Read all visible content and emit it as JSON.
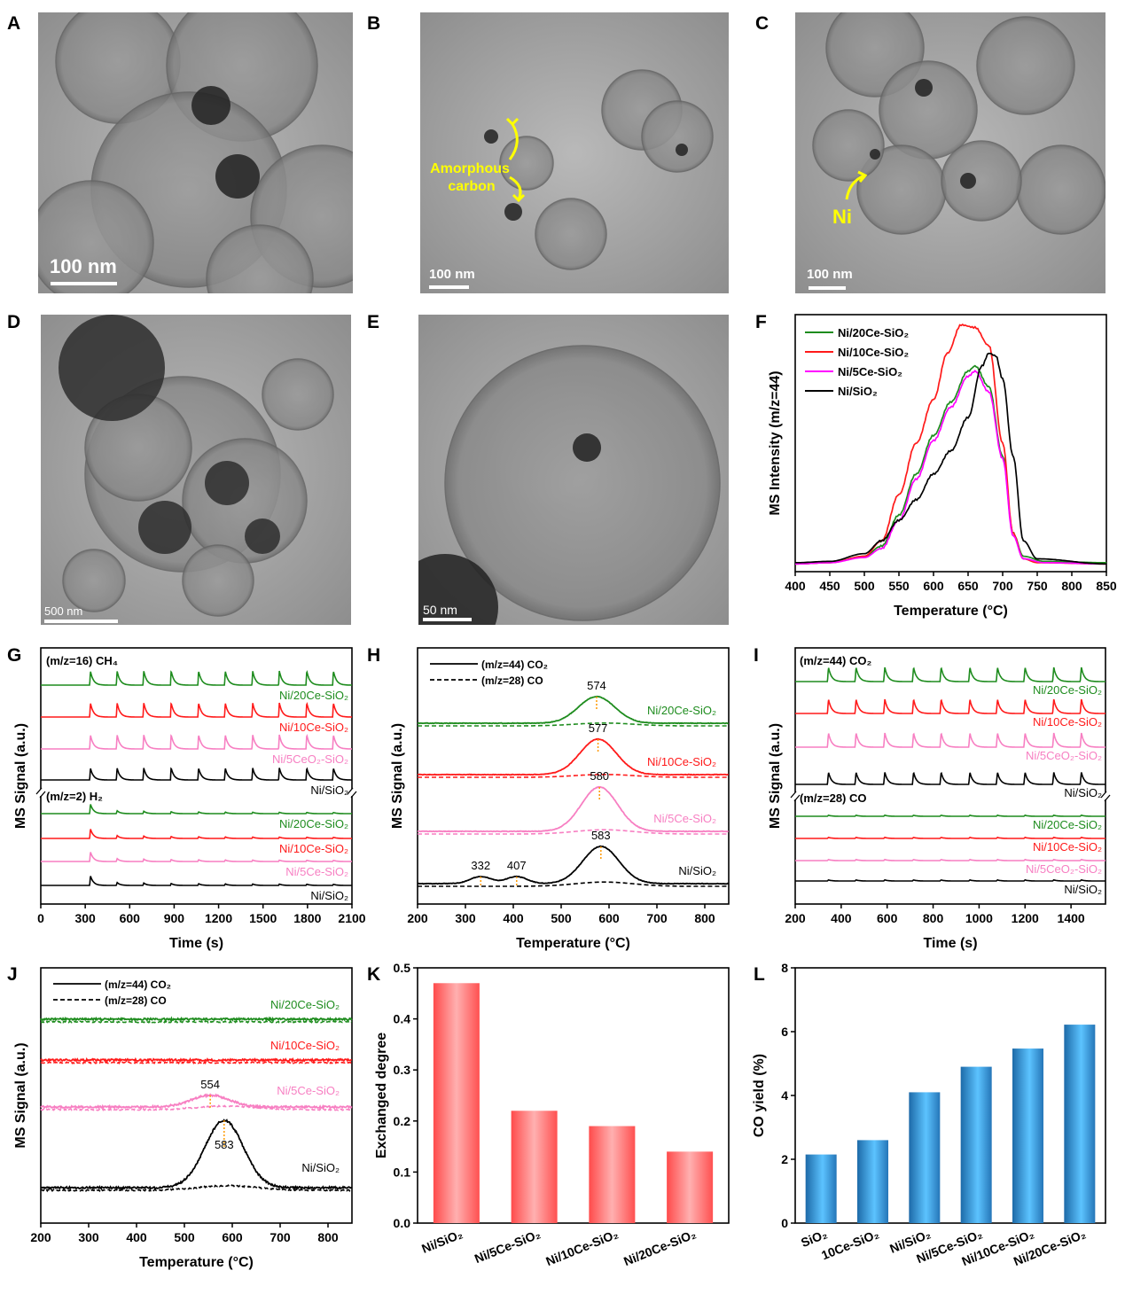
{
  "panel_labels": [
    "A",
    "B",
    "C",
    "D",
    "E",
    "F",
    "G",
    "H",
    "I",
    "J",
    "K",
    "L"
  ],
  "images": {
    "A": {
      "scale_bar": "100 nm"
    },
    "B": {
      "scale_bar": "100 nm",
      "annotation": [
        "Amorphous",
        "carbon"
      ],
      "annotation_color": "#ffff00"
    },
    "C": {
      "scale_bar": "100 nm",
      "annotation": [
        "Ni"
      ],
      "annotation_color": "#ffff00"
    },
    "D": {
      "scale_bar": "500 nm"
    },
    "E": {
      "scale_bar": "50 nm"
    }
  },
  "chart_data": [
    {
      "panel": "F",
      "type": "line",
      "xlabel": "Temperature (°C)",
      "ylabel": "MS Intensity (m/z=44)",
      "xlim": [
        400,
        850
      ],
      "xticks": [
        400,
        450,
        500,
        550,
        600,
        650,
        700,
        750,
        800,
        850
      ],
      "legend_position": "top-left",
      "grid": false,
      "series": [
        {
          "name": "Ni/20Ce-SiO₂",
          "color": "#1e8c1e",
          "points": [
            [
              400,
              0.03
            ],
            [
              450,
              0.035
            ],
            [
              500,
              0.06
            ],
            [
              525,
              0.1
            ],
            [
              550,
              0.22
            ],
            [
              575,
              0.38
            ],
            [
              600,
              0.53
            ],
            [
              625,
              0.66
            ],
            [
              650,
              0.78
            ],
            [
              660,
              0.8
            ],
            [
              680,
              0.72
            ],
            [
              700,
              0.45
            ],
            [
              715,
              0.15
            ],
            [
              730,
              0.06
            ],
            [
              760,
              0.04
            ],
            [
              850,
              0.035
            ]
          ]
        },
        {
          "name": "Ni/10Ce-SiO₂",
          "color": "#ff1a1a",
          "points": [
            [
              400,
              0.03
            ],
            [
              450,
              0.035
            ],
            [
              500,
              0.06
            ],
            [
              525,
              0.12
            ],
            [
              550,
              0.3
            ],
            [
              575,
              0.5
            ],
            [
              600,
              0.67
            ],
            [
              620,
              0.85
            ],
            [
              640,
              0.96
            ],
            [
              660,
              0.95
            ],
            [
              680,
              0.88
            ],
            [
              700,
              0.5
            ],
            [
              715,
              0.15
            ],
            [
              730,
              0.05
            ],
            [
              750,
              0.035
            ],
            [
              850,
              0.03
            ]
          ]
        },
        {
          "name": "Ni/5Ce-SiO₂",
          "color": "#ff00ff",
          "points": [
            [
              400,
              0.03
            ],
            [
              450,
              0.035
            ],
            [
              500,
              0.055
            ],
            [
              525,
              0.09
            ],
            [
              550,
              0.2
            ],
            [
              575,
              0.36
            ],
            [
              600,
              0.51
            ],
            [
              625,
              0.64
            ],
            [
              650,
              0.76
            ],
            [
              660,
              0.78
            ],
            [
              680,
              0.7
            ],
            [
              700,
              0.44
            ],
            [
              715,
              0.14
            ],
            [
              730,
              0.05
            ],
            [
              760,
              0.035
            ],
            [
              850,
              0.03
            ]
          ]
        },
        {
          "name": "Ni/SiO₂",
          "color": "#000000",
          "points": [
            [
              400,
              0.035
            ],
            [
              450,
              0.04
            ],
            [
              500,
              0.07
            ],
            [
              525,
              0.12
            ],
            [
              550,
              0.2
            ],
            [
              575,
              0.28
            ],
            [
              600,
              0.38
            ],
            [
              625,
              0.47
            ],
            [
              650,
              0.6
            ],
            [
              670,
              0.8
            ],
            [
              680,
              0.85
            ],
            [
              690,
              0.84
            ],
            [
              700,
              0.75
            ],
            [
              715,
              0.45
            ],
            [
              730,
              0.12
            ],
            [
              750,
              0.05
            ],
            [
              850,
              0.03
            ]
          ]
        }
      ]
    },
    {
      "panel": "G",
      "type": "line",
      "xlabel": "Time (s)",
      "ylabel": "MS Signal (a.u.)",
      "xlim": [
        0,
        2100
      ],
      "xticks": [
        0,
        300,
        600,
        900,
        1200,
        1500,
        1800,
        2100
      ],
      "pulse_times": [
        330,
        510,
        690,
        875,
        1060,
        1240,
        1425,
        1605,
        1790,
        1970
      ],
      "groups": [
        {
          "label": "(m/z=16) CH₄",
          "relative_peak_heights": [
            1,
            1,
            1,
            1,
            1,
            1,
            1,
            1,
            1,
            1
          ],
          "series": [
            {
              "name": "Ni/20Ce-SiO₂",
              "color": "#1e8c1e"
            },
            {
              "name": "Ni/10Ce-SiO₂",
              "color": "#ff1a1a"
            },
            {
              "name": "Ni/5CeO₂-SiO₂",
              "color": "#f77fc2"
            },
            {
              "name": "Ni/SiO₂",
              "color": "#000000"
            }
          ]
        },
        {
          "label": "(m/z=2) H₂",
          "relative_peak_heights": [
            1,
            0.3,
            0.25,
            0.2,
            0.18,
            0.16,
            0.15,
            0.14,
            0.13,
            0.12
          ],
          "series": [
            {
              "name": "Ni/20Ce-SiO₂",
              "color": "#1e8c1e"
            },
            {
              "name": "Ni/10Ce-SiO₂",
              "color": "#ff1a1a"
            },
            {
              "name": "Ni/5Ce-SiO₂",
              "color": "#f77fc2"
            },
            {
              "name": "Ni/SiO₂",
              "color": "#000000"
            }
          ]
        }
      ]
    },
    {
      "panel": "H",
      "type": "line",
      "xlabel": "Temperature (°C)",
      "ylabel": "MS Signal (a.u.)",
      "xlim": [
        200,
        850
      ],
      "xticks": [
        200,
        300,
        400,
        500,
        600,
        700,
        800
      ],
      "legend": [
        "(m/z=44) CO₂",
        "(m/z=28) CO"
      ],
      "legend_position": "top-left",
      "series": [
        {
          "name": "Ni/20Ce-SiO₂",
          "color": "#1e8c1e",
          "co2_peaks": [
            {
              "T": 574,
              "height": 0.75
            }
          ],
          "co_height": 0.08,
          "peak_labels": [
            "574"
          ]
        },
        {
          "name": "Ni/10Ce-SiO₂",
          "color": "#ff1a1a",
          "co2_peaks": [
            {
              "T": 577,
              "height": 1.0
            }
          ],
          "co_height": 0.08,
          "peak_labels": [
            "577"
          ]
        },
        {
          "name": "Ni/5Ce-SiO₂",
          "color": "#f77fc2",
          "co2_peaks": [
            {
              "T": 580,
              "height": 1.25
            }
          ],
          "co_height": 0.12,
          "peak_labels": [
            "580"
          ]
        },
        {
          "name": "Ni/SiO₂",
          "color": "#000000",
          "co2_peaks": [
            {
              "T": 332,
              "height": 0.2
            },
            {
              "T": 407,
              "height": 0.2
            },
            {
              "T": 583,
              "height": 1.05
            }
          ],
          "co_height": 0.12,
          "peak_labels": [
            "332",
            "407",
            "583"
          ]
        }
      ]
    },
    {
      "panel": "I",
      "type": "line",
      "xlabel": "Time (s)",
      "ylabel": "MS Signal (a.u.)",
      "xlim": [
        200,
        1550
      ],
      "xticks": [
        200,
        400,
        600,
        800,
        1000,
        1200,
        1400
      ],
      "pulse_times": [
        340,
        460,
        585,
        710,
        830,
        955,
        1075,
        1195,
        1320,
        1440
      ],
      "groups": [
        {
          "label": "(m/z=44) CO₂",
          "relative_peak_heights": [
            1,
            1,
            1,
            1,
            1,
            1,
            1,
            1,
            1,
            1
          ],
          "series": [
            {
              "name": "Ni/20Ce-SiO₂",
              "color": "#1e8c1e"
            },
            {
              "name": "Ni/10Ce-SiO₂",
              "color": "#ff1a1a"
            },
            {
              "name": "Ni/5CeO₂-SiO₂",
              "color": "#f77fc2"
            },
            {
              "name": "Ni/SiO₂",
              "color": "#000000"
            }
          ]
        },
        {
          "label": "(m/z=28) CO",
          "relative_peak_heights": [
            0.3,
            0.3,
            0.3,
            0.3,
            0.3,
            0.3,
            0.3,
            0.3,
            0.3,
            0.3
          ],
          "series": [
            {
              "name": "Ni/20Ce-SiO₂",
              "color": "#1e8c1e"
            },
            {
              "name": "Ni/10Ce-SiO₂",
              "color": "#ff1a1a"
            },
            {
              "name": "Ni/5CeO₂-SiO₂",
              "color": "#f77fc2"
            },
            {
              "name": "Ni/SiO₂",
              "color": "#000000"
            }
          ]
        }
      ]
    },
    {
      "panel": "J",
      "type": "line",
      "xlabel": "Temperature (°C)",
      "ylabel": "MS Signal (a.u.)",
      "xlim": [
        200,
        850
      ],
      "xticks": [
        200,
        300,
        400,
        500,
        600,
        700,
        800
      ],
      "legend": [
        "(m/z=44) CO₂",
        "(m/z=28) CO"
      ],
      "legend_position": "top-left",
      "series": [
        {
          "name": "Ni/20Ce-SiO₂",
          "color": "#1e8c1e",
          "co2_peaks": [],
          "co_height": 0,
          "peak_labels": []
        },
        {
          "name": "Ni/10Ce-SiO₂",
          "color": "#ff1a1a",
          "co2_peaks": [],
          "co_height": 0,
          "peak_labels": []
        },
        {
          "name": "Ni/5Ce-SiO₂",
          "color": "#f77fc2",
          "co2_peaks": [
            {
              "T": 554,
              "height": 0.33
            }
          ],
          "co_height": 0.1,
          "peak_labels": [
            "554"
          ]
        },
        {
          "name": "Ni/SiO₂",
          "color": "#000000",
          "co2_peaks": [
            {
              "T": 583,
              "height": 1.9
            }
          ],
          "co_height": 0.13,
          "peak_labels": [
            "583"
          ]
        }
      ]
    },
    {
      "panel": "K",
      "type": "bar",
      "xlabel": "",
      "ylabel": "Exchanged degree",
      "ylim": [
        0,
        0.5
      ],
      "yticks": [
        "0.0",
        "0.1",
        "0.2",
        "0.3",
        "0.4",
        "0.5"
      ],
      "categories": [
        "Ni/SiO₂",
        "Ni/5Ce-SiO₂",
        "Ni/10Ce-SiO₂",
        "Ni/20Ce-SiO₂"
      ],
      "values": [
        0.47,
        0.22,
        0.19,
        0.14
      ],
      "color": "#ff5a5a"
    },
    {
      "panel": "L",
      "type": "bar",
      "xlabel": "",
      "ylabel": "CO yield (%)",
      "ylim": [
        0,
        8
      ],
      "yticks": [
        "0",
        "2",
        "4",
        "6",
        "8"
      ],
      "categories": [
        "SiO₂",
        "10Ce-SiO₂",
        "Ni/SiO₂",
        "Ni/5Ce-SiO₂",
        "Ni/10Ce-SiO₂",
        "Ni/20Ce-SiO₂"
      ],
      "values": [
        2.15,
        2.6,
        4.1,
        4.9,
        5.47,
        6.22
      ],
      "color": "#3aa6e8"
    }
  ]
}
